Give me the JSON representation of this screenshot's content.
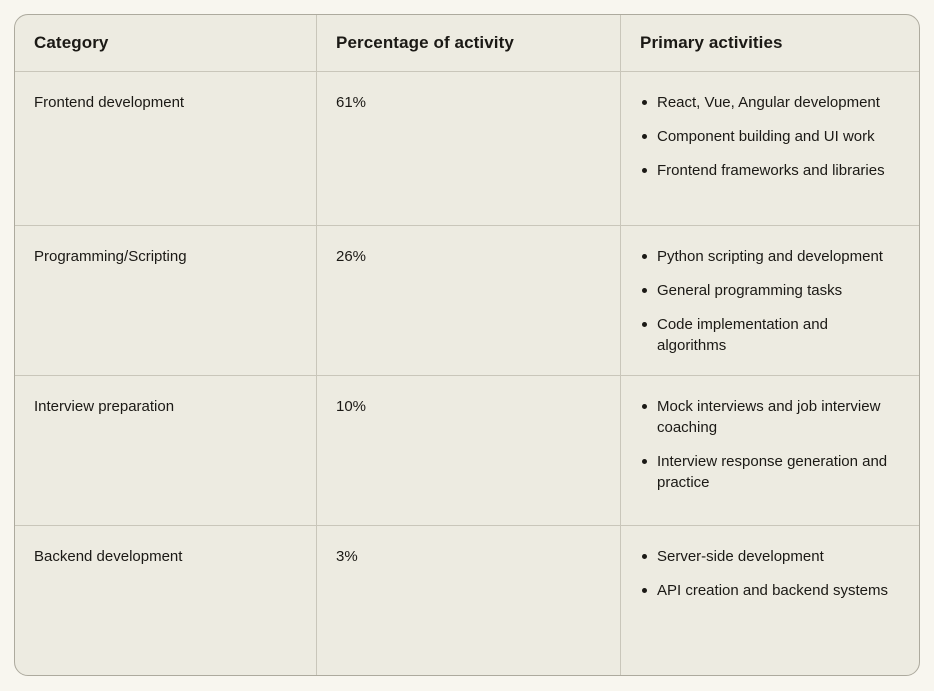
{
  "table": {
    "columns": [
      {
        "label": "Category"
      },
      {
        "label": "Percentage of activity"
      },
      {
        "label": "Primary activities"
      }
    ],
    "rows": [
      {
        "category": "Frontend development",
        "percentage": "61%",
        "activities": [
          "React, Vue, Angular development",
          "Component building and UI work",
          "Frontend frameworks and libraries"
        ]
      },
      {
        "category": "Programming/Scripting",
        "percentage": "26%",
        "activities": [
          "Python scripting and development",
          "General programming tasks",
          "Code implementation and algorithms"
        ]
      },
      {
        "category": "Interview preparation",
        "percentage": "10%",
        "activities": [
          "Mock interviews and job interview coaching",
          "Interview response generation and practice"
        ]
      },
      {
        "category": "Backend development",
        "percentage": "3%",
        "activities": [
          "Server-side development",
          "API creation and backend systems"
        ]
      }
    ],
    "colors": {
      "page_background": "#f8f6ef",
      "table_background": "#edebe1",
      "grid_line": "#c9c6ba",
      "outer_border": "#adaa9e",
      "text": "#1b1915"
    }
  }
}
